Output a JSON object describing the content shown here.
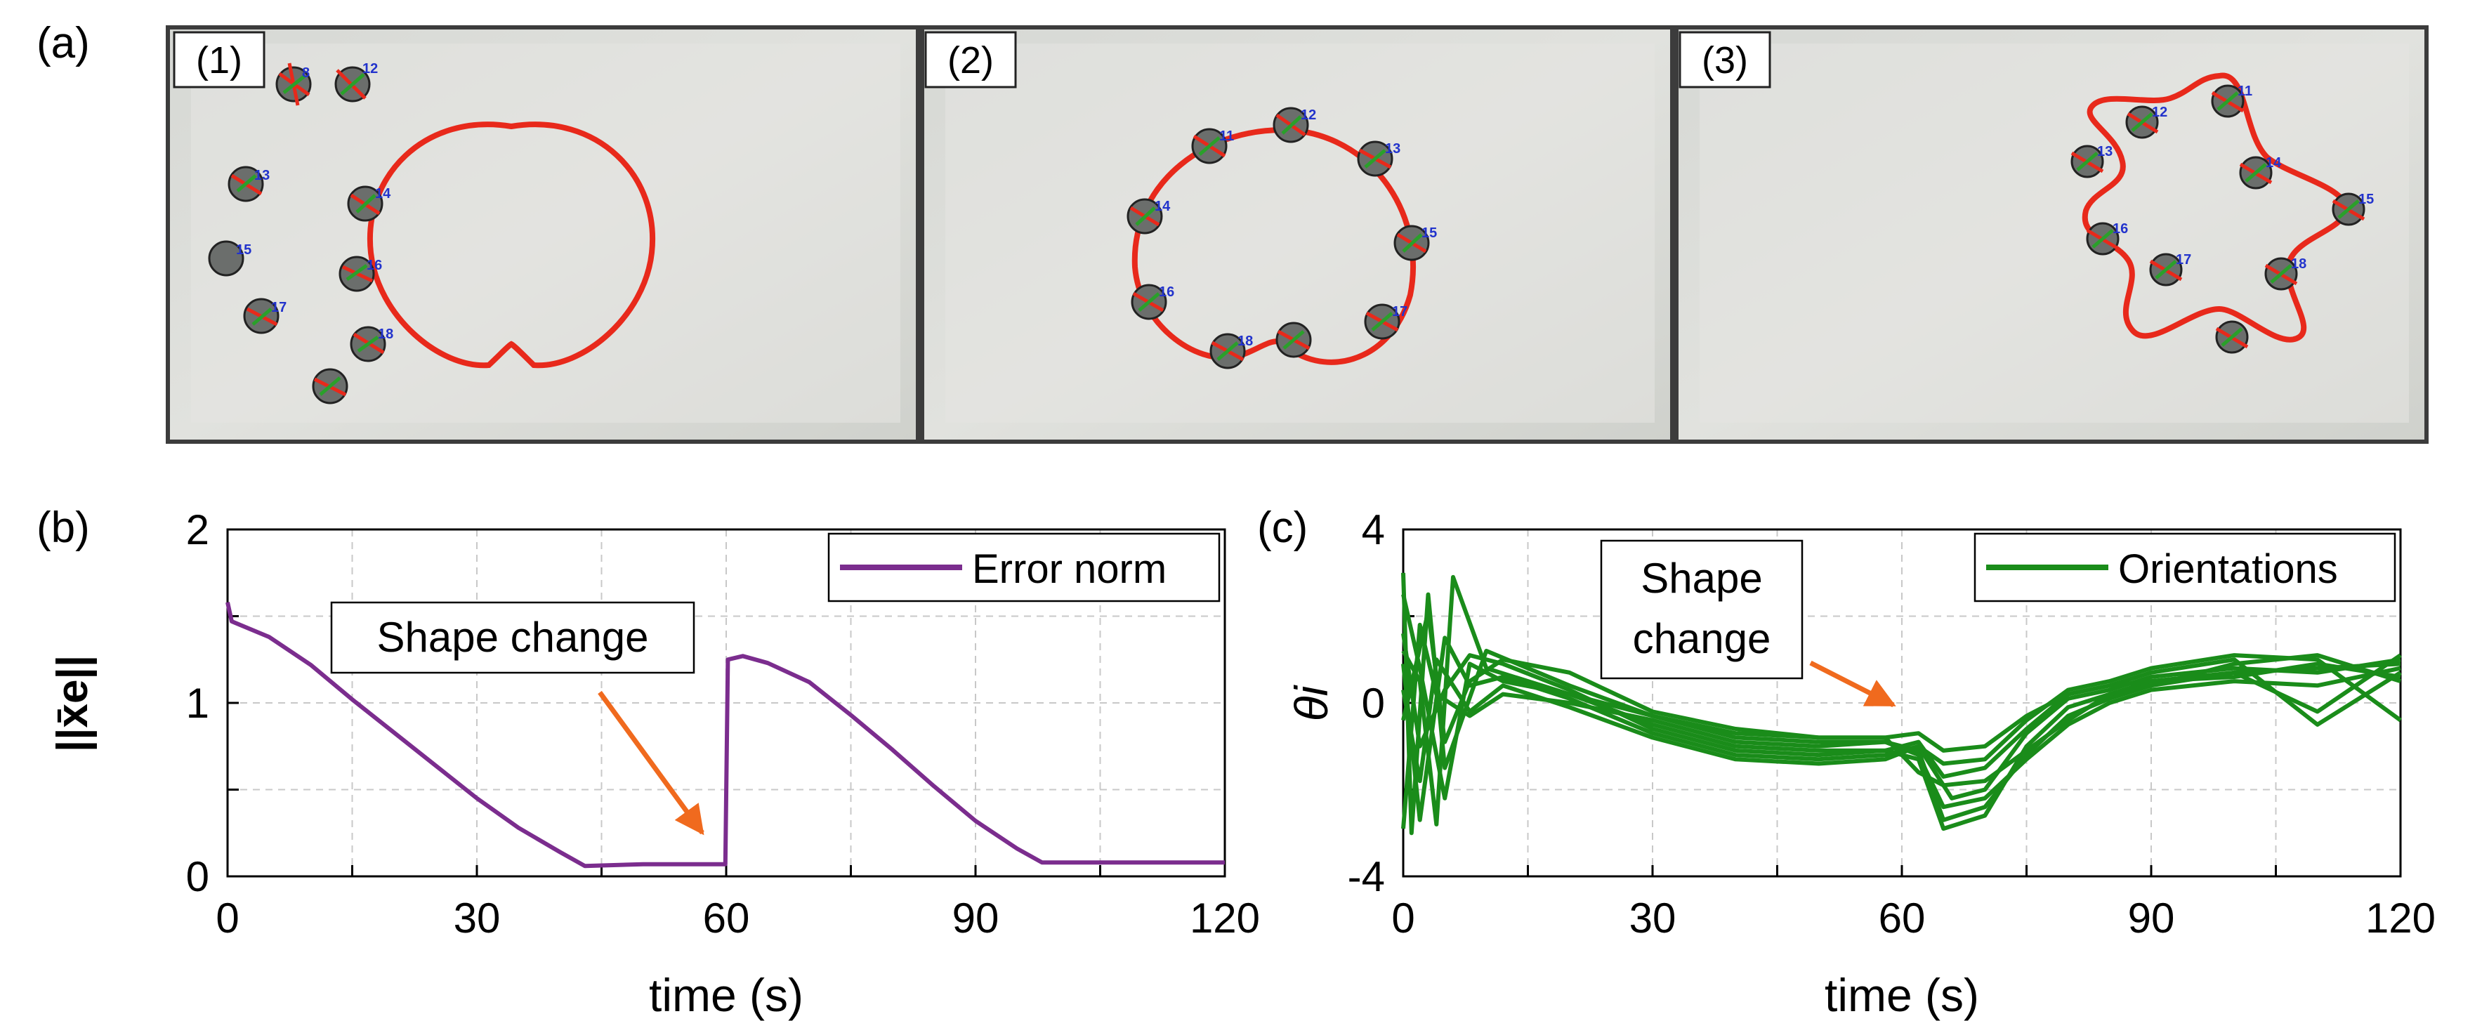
{
  "figure": {
    "panel_a_label": "(a)",
    "panel_b_label": "(b)",
    "panel_c_label": "(c)",
    "photo_labels": [
      "(1)",
      "(2)",
      "(3)"
    ]
  },
  "colors": {
    "error_norm": "#7b2d8e",
    "orientations": "#1a8c1a",
    "arrow": "#f06a1e",
    "formation": "#e8291b",
    "robot_label": "#2233cc"
  },
  "photos": [
    {
      "label": "(1)",
      "shape": "cardioid",
      "robot_tags": [
        "8",
        "12",
        "13",
        "14",
        "15",
        "16",
        "17",
        "18"
      ]
    },
    {
      "label": "(2)",
      "shape": "circle-with-notch",
      "robot_tags": [
        "11",
        "12",
        "13",
        "14",
        "15",
        "16",
        "17",
        "18"
      ]
    },
    {
      "label": "(3)",
      "shape": "five-petal-star",
      "robot_tags": [
        "11",
        "12",
        "13",
        "14",
        "15",
        "16",
        "17",
        "18"
      ]
    }
  ],
  "chart_data": [
    {
      "type": "line",
      "title": "",
      "xlabel": "time (s)",
      "ylabel": "||x̄e||",
      "xlim": [
        0,
        120
      ],
      "ylim": [
        0,
        2
      ],
      "xticks": [
        0,
        30,
        60,
        90,
        120
      ],
      "yticks": [
        0,
        1,
        2
      ],
      "grid": true,
      "legend": "top-right",
      "annotation": {
        "text": [
          "Shape change"
        ],
        "points_to": [
          60,
          0.07
        ]
      },
      "series": [
        {
          "name": "Error norm",
          "x": [
            0,
            0.5,
            5,
            10,
            15,
            20,
            25,
            30,
            35,
            40,
            43,
            50,
            55,
            59.9,
            60.2,
            62,
            65,
            70,
            75,
            80,
            85,
            90,
            95,
            98,
            100,
            110,
            120
          ],
          "y": [
            1.58,
            1.47,
            1.38,
            1.22,
            1.02,
            0.83,
            0.64,
            0.45,
            0.28,
            0.14,
            0.06,
            0.07,
            0.07,
            0.07,
            1.25,
            1.27,
            1.23,
            1.12,
            0.93,
            0.73,
            0.52,
            0.32,
            0.16,
            0.08,
            0.08,
            0.08,
            0.08
          ]
        }
      ]
    },
    {
      "type": "line",
      "title": "",
      "xlabel": "time (s)",
      "ylabel": "θi",
      "xlim": [
        0,
        120
      ],
      "ylim": [
        -4,
        4
      ],
      "xticks": [
        0,
        30,
        60,
        90,
        120
      ],
      "yticks": [
        -4,
        0,
        4
      ],
      "grid": true,
      "legend": "top-right",
      "annotation": {
        "text": [
          "Shape",
          "change"
        ],
        "points_to": [
          60,
          -0.3
        ]
      },
      "series": [
        {
          "name": "Orientations",
          "x": [
            0,
            1,
            3,
            5,
            10,
            20,
            30,
            40,
            50,
            58,
            62,
            65,
            70,
            75,
            80,
            85,
            90,
            100,
            110,
            120
          ],
          "y": [
            3.0,
            -3.0,
            2.5,
            -1.5,
            1.2,
            0.4,
            -0.3,
            -0.8,
            -0.9,
            -0.9,
            -1.1,
            -2.7,
            -2.4,
            -1.2,
            -0.3,
            0.1,
            0.4,
            0.7,
            0.8,
            0.9
          ]
        },
        {
          "name": "",
          "x": [
            0,
            2,
            4,
            6,
            10,
            20,
            30,
            40,
            50,
            58,
            62,
            65,
            70,
            75,
            80,
            85,
            90,
            100,
            110,
            120
          ],
          "y": [
            1.2,
            0.5,
            -2.8,
            2.9,
            0.8,
            0.2,
            -0.5,
            -1.0,
            -1.1,
            -1.1,
            -1.3,
            -2.9,
            -2.6,
            -1.0,
            -0.1,
            0.2,
            0.5,
            0.6,
            0.9,
            0.6
          ]
        },
        {
          "name": "",
          "x": [
            0,
            2,
            5,
            8,
            12,
            20,
            30,
            40,
            50,
            58,
            62,
            66,
            70,
            75,
            80,
            85,
            90,
            100,
            110,
            120
          ],
          "y": [
            0.9,
            -2.7,
            1.5,
            0.4,
            0.6,
            0.1,
            -0.7,
            -1.2,
            -1.3,
            -1.2,
            -1.0,
            -2.2,
            -2.0,
            -0.7,
            0.1,
            0.3,
            0.6,
            0.8,
            0.7,
            1.0
          ]
        },
        {
          "name": "",
          "x": [
            0,
            3,
            5,
            8,
            12,
            20,
            30,
            40,
            50,
            58,
            62,
            65,
            70,
            75,
            80,
            85,
            90,
            100,
            110,
            120
          ],
          "y": [
            -0.4,
            2.1,
            -0.9,
            0.5,
            1.0,
            0.7,
            -0.2,
            -0.6,
            -0.8,
            -0.8,
            -1.6,
            -1.9,
            -1.8,
            -1.1,
            -0.4,
            0.2,
            0.4,
            0.9,
            1.1,
            0.5
          ]
        },
        {
          "name": "",
          "x": [
            0,
            2,
            4,
            8,
            12,
            20,
            30,
            40,
            50,
            58,
            62,
            65,
            70,
            75,
            80,
            85,
            90,
            100,
            110,
            120
          ],
          "y": [
            -2.9,
            1.8,
            0.2,
            -0.3,
            0.2,
            0.0,
            -0.4,
            -0.9,
            -1.0,
            -0.9,
            -1.2,
            -2.4,
            -2.2,
            -1.3,
            -0.5,
            0.0,
            0.3,
            0.5,
            0.4,
            0.8
          ]
        },
        {
          "name": "",
          "x": [
            0,
            2,
            5,
            8,
            12,
            20,
            30,
            40,
            50,
            58,
            62,
            65,
            70,
            75,
            80,
            85,
            90,
            100,
            110,
            120
          ],
          "y": [
            1.6,
            -1.0,
            0.3,
            1.1,
            0.9,
            0.3,
            -0.6,
            -1.1,
            -1.2,
            -1.1,
            -0.9,
            -1.7,
            -1.5,
            -0.6,
            0.2,
            0.4,
            0.7,
            1.0,
            -0.5,
            0.7
          ]
        },
        {
          "name": "",
          "x": [
            0,
            2,
            4,
            8,
            12,
            20,
            30,
            40,
            50,
            58,
            62,
            65,
            70,
            75,
            80,
            85,
            90,
            100,
            110,
            120
          ],
          "y": [
            0.3,
            -1.8,
            1.0,
            -0.2,
            0.4,
            -0.1,
            -0.8,
            -1.3,
            -1.4,
            -1.3,
            -1.0,
            -1.4,
            -1.3,
            -0.4,
            0.3,
            0.5,
            0.8,
            1.1,
            1.0,
            -0.4
          ]
        },
        {
          "name": "",
          "x": [
            0,
            2,
            5,
            8,
            12,
            20,
            30,
            40,
            50,
            58,
            62,
            65,
            70,
            75,
            80,
            85,
            90,
            100,
            110,
            120
          ],
          "y": [
            2.5,
            0.8,
            -2.2,
            0.9,
            0.5,
            0.2,
            -0.3,
            -0.7,
            -0.8,
            -0.8,
            -0.7,
            -1.1,
            -1.0,
            -0.3,
            0.2,
            0.4,
            0.5,
            0.7,
            -0.2,
            1.1
          ]
        }
      ]
    }
  ]
}
